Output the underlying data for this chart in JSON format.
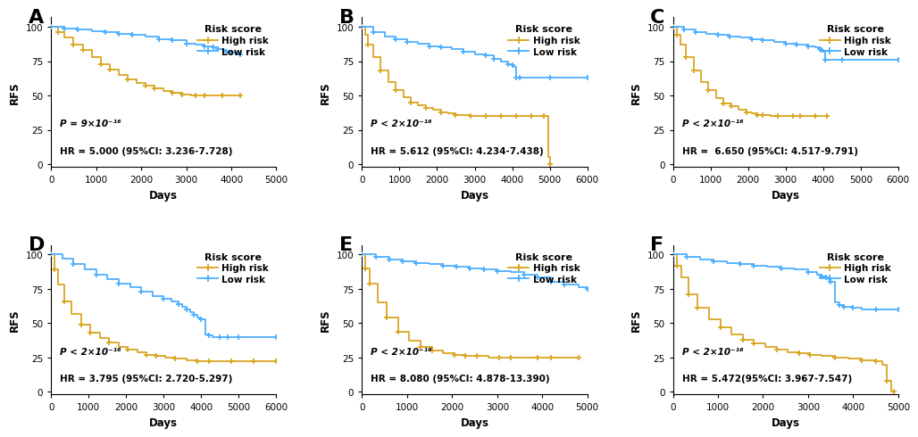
{
  "panels": [
    {
      "label": "A",
      "pval": "P = 9×10⁻¹⁶",
      "hr_text": "HR = 5.000 (95%CI: 3.236-7.728)",
      "xlim": [
        0,
        5000
      ],
      "xticks": [
        0,
        1000,
        2000,
        3000,
        4000,
        5000
      ],
      "high_risk": {
        "x": [
          0,
          150,
          300,
          500,
          700,
          900,
          1100,
          1300,
          1500,
          1700,
          1900,
          2100,
          2300,
          2500,
          2700,
          2900,
          3100,
          3200,
          3400,
          3600,
          3800,
          4000,
          4200
        ],
        "y": [
          100,
          96,
          92,
          87,
          83,
          78,
          73,
          69,
          65,
          62,
          59,
          57,
          55,
          53,
          52,
          51,
          50,
          50,
          50,
          50,
          50,
          50,
          50
        ]
      },
      "low_risk": {
        "x": [
          0,
          300,
          600,
          900,
          1200,
          1500,
          1800,
          2100,
          2400,
          2700,
          3000,
          3200,
          3400,
          3600,
          3700,
          3800,
          3900,
          4000,
          4100,
          4200
        ],
        "y": [
          100,
          99,
          98,
          97,
          96,
          95,
          94,
          93,
          91,
          90,
          88,
          87,
          86,
          85,
          84,
          83,
          82,
          81,
          80,
          80
        ]
      }
    },
    {
      "label": "B",
      "pval": "P < 2×10⁻¹⁶",
      "hr_text": "HR = 5.612 (95%CI: 4.234-7.438)",
      "xlim": [
        0,
        6000
      ],
      "xticks": [
        0,
        1000,
        2000,
        3000,
        4000,
        5000,
        6000
      ],
      "high_risk": {
        "x": [
          0,
          80,
          160,
          300,
          500,
          700,
          900,
          1100,
          1300,
          1500,
          1700,
          1900,
          2100,
          2300,
          2500,
          2700,
          2900,
          3100,
          3300,
          3500,
          3700,
          3900,
          4100,
          4300,
          4500,
          4700,
          4850,
          4950,
          5000
        ],
        "y": [
          100,
          94,
          87,
          78,
          68,
          60,
          54,
          49,
          45,
          43,
          41,
          40,
          38,
          37,
          36,
          36,
          35,
          35,
          35,
          35,
          35,
          35,
          35,
          35,
          35,
          35,
          35,
          5,
          0
        ]
      },
      "low_risk": {
        "x": [
          0,
          300,
          600,
          900,
          1200,
          1500,
          1800,
          2100,
          2400,
          2700,
          3000,
          3300,
          3500,
          3700,
          3900,
          4000,
          4050,
          4100,
          4200,
          4500,
          5000,
          5500,
          6000
        ],
        "y": [
          100,
          96,
          93,
          91,
          89,
          88,
          86,
          85,
          84,
          82,
          80,
          79,
          77,
          75,
          73,
          72,
          71,
          63,
          63,
          63,
          63,
          63,
          63
        ]
      }
    },
    {
      "label": "C",
      "pval": "P < 2×10⁻¹⁶",
      "hr_text": "HR =  6.650 (95%CI: 4.517-9.791)",
      "xlim": [
        0,
        6000
      ],
      "xticks": [
        0,
        1000,
        2000,
        3000,
        4000,
        5000,
        6000
      ],
      "high_risk": {
        "x": [
          0,
          100,
          200,
          350,
          550,
          750,
          950,
          1150,
          1350,
          1550,
          1750,
          1950,
          2100,
          2250,
          2400,
          2600,
          2800,
          3000,
          3200,
          3400,
          3600,
          3800,
          4000,
          4100
        ],
        "y": [
          100,
          94,
          87,
          78,
          68,
          60,
          54,
          48,
          44,
          42,
          40,
          38,
          37,
          36,
          36,
          35,
          35,
          35,
          35,
          35,
          35,
          35,
          35,
          35
        ]
      },
      "low_risk": {
        "x": [
          0,
          300,
          600,
          900,
          1200,
          1500,
          1800,
          2100,
          2400,
          2700,
          3000,
          3300,
          3600,
          3800,
          3900,
          3950,
          4000,
          4050,
          4500,
          5000,
          6000
        ],
        "y": [
          100,
          98,
          96,
          95,
          94,
          93,
          92,
          91,
          90,
          89,
          88,
          87,
          86,
          85,
          84,
          83,
          82,
          76,
          76,
          76,
          76
        ]
      }
    },
    {
      "label": "D",
      "pval": "P < 2×10⁻¹⁶",
      "hr_text": "HR = 3.795 (95%CI: 2.720-5.297)",
      "xlim": [
        0,
        6000
      ],
      "xticks": [
        0,
        1000,
        2000,
        3000,
        4000,
        5000,
        6000
      ],
      "high_risk": {
        "x": [
          0,
          80,
          180,
          350,
          550,
          800,
          1050,
          1300,
          1550,
          1800,
          2050,
          2300,
          2550,
          2800,
          3050,
          3300,
          3600,
          3900,
          4200,
          4500,
          4800,
          5100,
          5400,
          5700,
          6000
        ],
        "y": [
          100,
          89,
          78,
          66,
          57,
          49,
          43,
          39,
          36,
          33,
          31,
          29,
          27,
          26,
          25,
          24,
          23,
          22,
          22,
          22,
          22,
          22,
          22,
          22,
          22
        ]
      },
      "low_risk": {
        "x": [
          0,
          300,
          600,
          900,
          1200,
          1500,
          1800,
          2100,
          2400,
          2700,
          3000,
          3200,
          3400,
          3500,
          3600,
          3700,
          3800,
          3900,
          4000,
          4100,
          4200,
          4300,
          4500,
          4600,
          4700,
          4800,
          5000,
          5500,
          6000
        ],
        "y": [
          100,
          97,
          93,
          89,
          85,
          82,
          79,
          76,
          73,
          70,
          68,
          66,
          64,
          62,
          60,
          58,
          56,
          54,
          53,
          42,
          41,
          40,
          40,
          40,
          40,
          40,
          40,
          40,
          40
        ]
      }
    },
    {
      "label": "E",
      "pval": "P < 2×10⁻¹⁶",
      "hr_text": "HR = 8.080 (95%CI: 4.878-13.390)",
      "xlim": [
        0,
        5000
      ],
      "xticks": [
        0,
        1000,
        2000,
        3000,
        4000,
        5000
      ],
      "high_risk": {
        "x": [
          0,
          80,
          180,
          350,
          550,
          800,
          1050,
          1300,
          1550,
          1800,
          2050,
          2300,
          2550,
          2800,
          3050,
          3300,
          3600,
          3900,
          4200,
          4500,
          4800
        ],
        "y": [
          100,
          90,
          79,
          65,
          54,
          44,
          37,
          33,
          30,
          28,
          27,
          26,
          26,
          25,
          25,
          25,
          25,
          25,
          25,
          25,
          25
        ]
      },
      "low_risk": {
        "x": [
          0,
          300,
          600,
          900,
          1200,
          1500,
          1800,
          2100,
          2400,
          2700,
          3000,
          3300,
          3600,
          3900,
          4200,
          4500,
          4800,
          5000
        ],
        "y": [
          100,
          98,
          96,
          95,
          94,
          93,
          92,
          91,
          90,
          89,
          88,
          87,
          85,
          83,
          80,
          78,
          76,
          75
        ]
      }
    },
    {
      "label": "F",
      "pval": "P < 2×10⁻¹⁶",
      "hr_text": "HR = 5.472(95%CI: 3.967-7.547)",
      "xlim": [
        0,
        5000
      ],
      "xticks": [
        0,
        1000,
        2000,
        3000,
        4000,
        5000
      ],
      "high_risk": {
        "x": [
          0,
          80,
          180,
          350,
          550,
          800,
          1050,
          1300,
          1550,
          1800,
          2050,
          2300,
          2550,
          2800,
          3050,
          3300,
          3600,
          3900,
          4200,
          4500,
          4650,
          4750,
          4850,
          4900
        ],
        "y": [
          100,
          92,
          83,
          71,
          61,
          53,
          47,
          42,
          38,
          35,
          33,
          31,
          29,
          28,
          27,
          26,
          25,
          24,
          23,
          22,
          20,
          8,
          0,
          0
        ]
      },
      "low_risk": {
        "x": [
          0,
          300,
          600,
          900,
          1200,
          1500,
          1800,
          2100,
          2400,
          2700,
          3000,
          3200,
          3300,
          3400,
          3450,
          3500,
          3600,
          3700,
          3800,
          3900,
          4000,
          4200,
          4500,
          4800,
          5000
        ],
        "y": [
          100,
          98,
          96,
          95,
          94,
          93,
          92,
          91,
          90,
          89,
          87,
          85,
          84,
          83,
          82,
          80,
          65,
          63,
          62,
          62,
          61,
          60,
          60,
          60,
          60
        ]
      }
    }
  ],
  "high_risk_color": "#DAA520",
  "low_risk_color": "#4DAFFF",
  "linewidth": 1.3,
  "ylabel": "RFS",
  "xlabel": "Days",
  "yticks": [
    0,
    25,
    50,
    75,
    100
  ],
  "ylim": [
    -2,
    107
  ]
}
